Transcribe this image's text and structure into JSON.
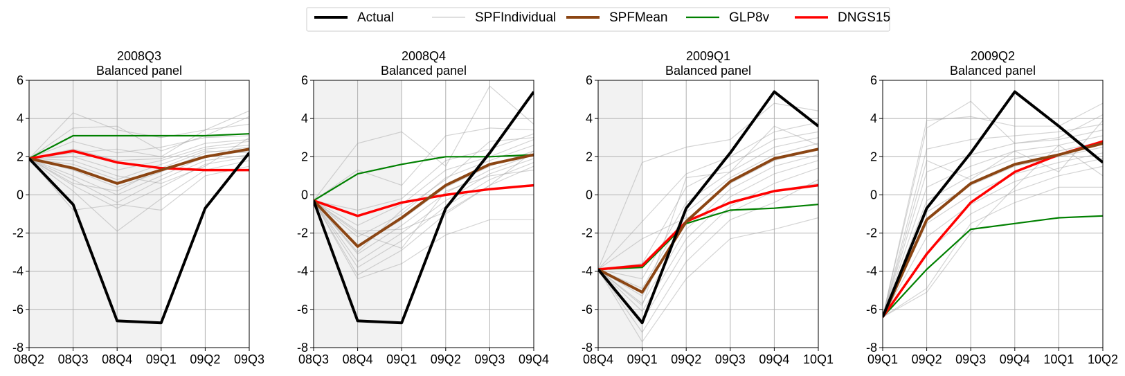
{
  "legend": {
    "placement": "top-center",
    "items": [
      {
        "label": "Actual",
        "color": "#000000"
      },
      {
        "label": "SPFIndividual",
        "color": "#cccccc"
      },
      {
        "label": "SPFMean",
        "color": "#8b4513"
      },
      {
        "label": "GLP8v",
        "color": "#008000"
      },
      {
        "label": "DNGS15",
        "color": "#ff0000"
      }
    ]
  },
  "chart_data": [
    {
      "type": "line",
      "title": "2008Q3\nBalanced panel",
      "x": [
        "08Q2",
        "08Q3",
        "08Q4",
        "09Q1",
        "09Q2",
        "09Q3"
      ],
      "ylim": [
        -8,
        6
      ],
      "yticks": [
        -8,
        -6,
        -4,
        -2,
        0,
        2,
        4,
        6
      ],
      "grid": true,
      "shaded_until_index": 3,
      "series": [
        {
          "name": "Actual",
          "values": [
            1.9,
            -0.5,
            -6.6,
            -6.7,
            -0.7,
            2.2
          ]
        },
        {
          "name": "SPFMean",
          "values": [
            1.9,
            1.4,
            0.6,
            1.3,
            2.0,
            2.4
          ]
        },
        {
          "name": "GLP8v",
          "values": [
            1.9,
            3.1,
            3.1,
            3.1,
            3.1,
            3.2
          ]
        },
        {
          "name": "DNGS15",
          "values": [
            1.9,
            2.3,
            1.7,
            1.4,
            1.3,
            1.3
          ]
        }
      ],
      "individual": [
        [
          1.9,
          4.3,
          3.4,
          3.0,
          3.4,
          3.7
        ],
        [
          1.9,
          3.5,
          3.6,
          2.3,
          3.1,
          4.1
        ],
        [
          1.9,
          2.8,
          2.2,
          2.5,
          3.0,
          3.1
        ],
        [
          1.9,
          2.4,
          1.8,
          1.9,
          2.7,
          2.9
        ],
        [
          1.9,
          2.0,
          1.3,
          1.8,
          2.5,
          2.8
        ],
        [
          1.9,
          1.6,
          0.8,
          1.6,
          2.4,
          2.6
        ],
        [
          1.9,
          1.3,
          0.4,
          1.2,
          2.2,
          2.5
        ],
        [
          1.9,
          1.0,
          0.0,
          1.0,
          2.0,
          2.3
        ],
        [
          1.9,
          0.8,
          -0.4,
          0.8,
          1.8,
          2.1
        ],
        [
          1.9,
          0.5,
          -0.7,
          0.4,
          1.6,
          2.0
        ],
        [
          1.9,
          0.2,
          -1.9,
          -0.2,
          1.3,
          1.8
        ],
        [
          1.9,
          -0.8,
          -0.5,
          -0.8,
          1.0,
          1.5
        ],
        [
          1.9,
          1.8,
          1.0,
          0.6,
          1.5,
          3.0
        ],
        [
          1.9,
          2.2,
          2.4,
          2.0,
          3.4,
          4.4
        ],
        [
          1.9,
          0.6,
          0.2,
          1.4,
          2.3,
          2.2
        ]
      ]
    },
    {
      "type": "line",
      "title": "2008Q4\nBalanced panel",
      "x": [
        "08Q3",
        "08Q4",
        "09Q1",
        "09Q2",
        "09Q3",
        "09Q4"
      ],
      "ylim": [
        -8,
        6
      ],
      "yticks": [
        -8,
        -6,
        -4,
        -2,
        0,
        2,
        4,
        6
      ],
      "grid": true,
      "shaded_until_index": 2,
      "series": [
        {
          "name": "Actual",
          "values": [
            -0.3,
            -6.6,
            -6.7,
            -0.7,
            2.2,
            5.4
          ]
        },
        {
          "name": "SPFMean",
          "values": [
            -0.3,
            -2.7,
            -1.2,
            0.5,
            1.6,
            2.1
          ]
        },
        {
          "name": "GLP8v",
          "values": [
            -0.3,
            1.1,
            1.6,
            2.0,
            2.0,
            2.1
          ]
        },
        {
          "name": "DNGS15",
          "values": [
            -0.3,
            -1.1,
            -0.4,
            0.0,
            0.3,
            0.5
          ]
        }
      ],
      "individual": [
        [
          -0.3,
          2.7,
          3.3,
          1.5,
          5.7,
          3.7
        ],
        [
          -0.3,
          1.3,
          0.5,
          3.1,
          3.5,
          3.4
        ],
        [
          -0.3,
          -0.8,
          -0.2,
          1.8,
          2.4,
          3.2
        ],
        [
          -0.3,
          -1.6,
          -0.5,
          1.3,
          2.0,
          2.9
        ],
        [
          -0.3,
          -2.2,
          -1.0,
          0.9,
          1.8,
          2.6
        ],
        [
          -0.3,
          -2.7,
          -1.3,
          0.4,
          1.5,
          2.3
        ],
        [
          -0.3,
          -3.1,
          -1.6,
          0.1,
          1.3,
          2.1
        ],
        [
          -0.3,
          -3.5,
          -2.0,
          -0.3,
          1.1,
          1.9
        ],
        [
          -0.3,
          -3.8,
          -2.4,
          -0.6,
          0.8,
          1.7
        ],
        [
          -0.3,
          -4.2,
          -2.9,
          -1.0,
          0.5,
          1.5
        ],
        [
          -0.3,
          -4.4,
          -3.6,
          -2.1,
          -1.3,
          -1.3
        ],
        [
          -0.3,
          -2.0,
          -2.8,
          0.2,
          1.0,
          1.3
        ],
        [
          -0.3,
          -3.0,
          -0.8,
          0.8,
          2.8,
          3.0
        ],
        [
          -0.3,
          -1.9,
          -1.8,
          -0.9,
          0.5,
          2.3
        ]
      ]
    },
    {
      "type": "line",
      "title": "2009Q1\nBalanced panel",
      "x": [
        "08Q4",
        "09Q1",
        "09Q2",
        "09Q3",
        "09Q4",
        "10Q1"
      ],
      "ylim": [
        -8,
        6
      ],
      "yticks": [
        -8,
        -6,
        -4,
        -2,
        0,
        2,
        4,
        6
      ],
      "grid": true,
      "shaded_until_index": 1,
      "series": [
        {
          "name": "Actual",
          "values": [
            -3.9,
            -6.7,
            -0.7,
            2.2,
            5.4,
            3.6
          ]
        },
        {
          "name": "SPFMean",
          "values": [
            -3.9,
            -5.1,
            -1.4,
            0.7,
            1.9,
            2.4
          ]
        },
        {
          "name": "GLP8v",
          "values": [
            -3.9,
            -3.8,
            -1.5,
            -0.8,
            -0.7,
            -0.5
          ]
        },
        {
          "name": "DNGS15",
          "values": [
            -3.9,
            -3.7,
            -1.4,
            -0.4,
            0.2,
            0.5
          ]
        }
      ],
      "individual": [
        [
          -3.9,
          1.7,
          2.5,
          2.9,
          4.8,
          4.4
        ],
        [
          -3.9,
          -1.4,
          1.1,
          2.0,
          3.3,
          3.8
        ],
        [
          -3.9,
          -3.6,
          0.4,
          1.6,
          2.9,
          3.3
        ],
        [
          -3.9,
          -4.4,
          -0.4,
          1.2,
          2.5,
          3.0
        ],
        [
          -3.9,
          -4.9,
          -0.9,
          0.9,
          2.1,
          2.7
        ],
        [
          -3.9,
          -5.3,
          -1.3,
          0.6,
          1.8,
          2.4
        ],
        [
          -3.9,
          -5.7,
          -1.8,
          0.3,
          1.5,
          2.1
        ],
        [
          -3.9,
          -6.1,
          -2.3,
          -0.1,
          1.1,
          1.8
        ],
        [
          -3.9,
          -6.6,
          -2.8,
          -0.6,
          0.6,
          1.4
        ],
        [
          -3.9,
          -7.2,
          -3.5,
          -1.3,
          -0.4,
          0.8
        ],
        [
          -3.9,
          -7.7,
          -4.4,
          -2.3,
          -1.8,
          -1.2
        ],
        [
          -3.9,
          -2.3,
          -1.2,
          -0.9,
          0.2,
          0.6
        ],
        [
          -3.9,
          -5.8,
          0.9,
          1.2,
          3.6,
          2.6
        ]
      ]
    },
    {
      "type": "line",
      "title": "2009Q2\nBalanced panel",
      "x": [
        "09Q1",
        "09Q2",
        "09Q3",
        "09Q4",
        "10Q1",
        "10Q2"
      ],
      "ylim": [
        -8,
        6
      ],
      "yticks": [
        -8,
        -6,
        -4,
        -2,
        0,
        2,
        4,
        6
      ],
      "grid": true,
      "shaded_until_index": 0,
      "series": [
        {
          "name": "Actual",
          "values": [
            -6.4,
            -0.7,
            2.2,
            5.4,
            3.6,
            1.7
          ]
        },
        {
          "name": "SPFMean",
          "values": [
            -6.4,
            -1.3,
            0.6,
            1.6,
            2.1,
            2.7
          ]
        },
        {
          "name": "GLP8v",
          "values": [
            -6.4,
            -3.9,
            -1.8,
            -1.5,
            -1.2,
            -1.1
          ]
        },
        {
          "name": "DNGS15",
          "values": [
            -6.4,
            -3.1,
            -0.4,
            1.2,
            2.1,
            2.8
          ]
        }
      ],
      "individual": [
        [
          -6.4,
          3.9,
          4.1,
          3.6,
          3.6,
          4.8
        ],
        [
          -6.4,
          3.5,
          4.9,
          2.7,
          3.0,
          4.2
        ],
        [
          -6.4,
          2.4,
          2.9,
          3.1,
          3.3,
          3.7
        ],
        [
          -6.4,
          1.2,
          2.1,
          2.7,
          2.9,
          3.4
        ],
        [
          -6.4,
          0.4,
          1.5,
          2.3,
          2.6,
          3.1
        ],
        [
          -6.4,
          -0.3,
          1.0,
          1.9,
          2.3,
          2.8
        ],
        [
          -6.4,
          -0.9,
          0.5,
          1.5,
          2.0,
          2.5
        ],
        [
          -6.4,
          -1.5,
          0.0,
          1.1,
          1.7,
          2.2
        ],
        [
          -6.4,
          -2.2,
          -0.5,
          0.7,
          1.4,
          1.9
        ],
        [
          -6.4,
          -3.0,
          -1.0,
          0.2,
          1.0,
          1.5
        ],
        [
          -6.4,
          -4.9,
          -1.5,
          -0.4,
          0.4,
          0.4
        ],
        [
          -6.4,
          -5.1,
          -2.0,
          0.4,
          2.6,
          1.0
        ],
        [
          -6.4,
          1.8,
          0.8,
          2.3,
          1.2,
          3.9
        ]
      ]
    }
  ]
}
